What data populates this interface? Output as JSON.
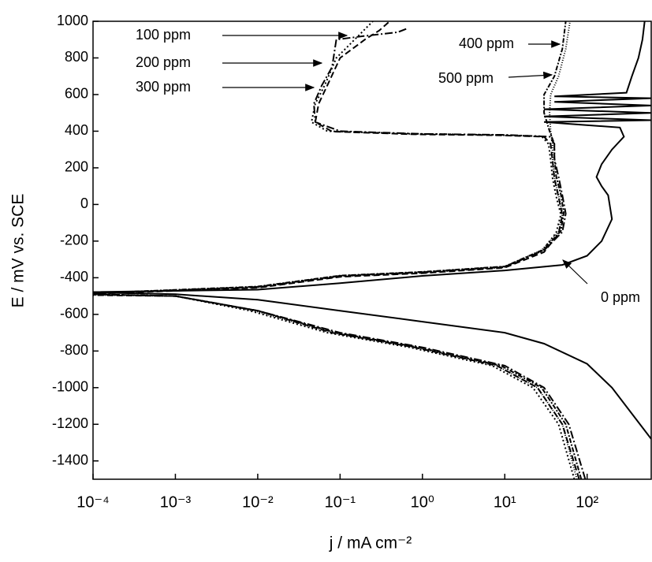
{
  "chart_data": {
    "type": "line",
    "x_label": "j / mA cm⁻²",
    "y_label": "E / mV vs. SCE",
    "xscale": "log",
    "xlim": [
      0.0001,
      600
    ],
    "ylim": [
      -1500,
      1000
    ],
    "xticks": [
      {
        "value": 0.0001,
        "label": "10⁻⁴"
      },
      {
        "value": 0.001,
        "label": "10⁻³"
      },
      {
        "value": 0.01,
        "label": "10⁻²"
      },
      {
        "value": 0.1,
        "label": "10⁻¹"
      },
      {
        "value": 1,
        "label": "10⁰"
      },
      {
        "value": 10,
        "label": "10¹"
      },
      {
        "value": 100,
        "label": "10²"
      }
    ],
    "yticks": [
      -1400,
      -1200,
      -1000,
      -800,
      -600,
      -400,
      -200,
      0,
      200,
      400,
      600,
      800,
      1000
    ],
    "series": [
      {
        "name": "0 ppm",
        "color": "#000000",
        "dash": "none",
        "x": [
          600,
          200,
          100,
          30,
          10,
          1,
          0.1,
          0.01,
          0.001,
          0.0001,
          0.0001,
          0.01,
          0.1,
          1,
          10,
          50,
          100,
          150,
          200,
          180,
          150,
          130,
          150,
          200,
          280,
          250,
          60,
          30,
          600,
          30,
          600,
          30,
          600,
          40,
          600,
          40,
          300,
          350,
          420,
          470,
          500
        ],
        "y": [
          -1280,
          -1000,
          -870,
          -760,
          -700,
          -640,
          -580,
          -520,
          -490,
          -480,
          -478,
          -465,
          -430,
          -390,
          -360,
          -330,
          -280,
          -200,
          -80,
          50,
          100,
          150,
          220,
          300,
          370,
          420,
          440,
          450,
          460,
          480,
          500,
          520,
          540,
          560,
          580,
          590,
          610,
          700,
          800,
          900,
          1000
        ]
      },
      {
        "name": "100 ppm",
        "color": "#000000",
        "dash": "10 3 2 3",
        "x": [
          95,
          60,
          30,
          10,
          1,
          0.1,
          0.01,
          0.001,
          0.0001,
          0.0001,
          0.01,
          0.1,
          1,
          10,
          30,
          50,
          55,
          50,
          45,
          40,
          40,
          35,
          10,
          1,
          0.1,
          0.05,
          0.048,
          0.06,
          0.08,
          0.09,
          0.2,
          0.5,
          0.65
        ],
        "y": [
          -1500,
          -1200,
          -1000,
          -880,
          -780,
          -700,
          -580,
          -500,
          -490,
          -485,
          -450,
          -390,
          -370,
          -340,
          -250,
          -150,
          -50,
          50,
          150,
          250,
          330,
          370,
          380,
          385,
          400,
          450,
          550,
          650,
          750,
          900,
          920,
          940,
          960
        ]
      },
      {
        "name": "200 ppm",
        "color": "#000000",
        "dash": "8 4",
        "x": [
          80,
          50,
          25,
          8,
          0.8,
          0.08,
          0.01,
          0.001,
          0.0001,
          0.0001,
          0.01,
          0.1,
          1,
          10,
          30,
          45,
          50,
          45,
          40,
          38,
          36,
          30,
          8,
          0.8,
          0.08,
          0.05,
          0.055,
          0.07,
          0.1,
          0.2,
          0.3,
          0.4
        ],
        "y": [
          -1500,
          -1200,
          -1000,
          -880,
          -780,
          -700,
          -580,
          -500,
          -495,
          -488,
          -455,
          -395,
          -375,
          -345,
          -260,
          -160,
          -60,
          40,
          140,
          240,
          330,
          370,
          378,
          383,
          398,
          450,
          550,
          650,
          800,
          900,
          950,
          1000
        ]
      },
      {
        "name": "300 ppm",
        "color": "#000000",
        "dash": "2 3",
        "x": [
          70,
          45,
          22,
          7,
          0.7,
          0.07,
          0.008,
          0.001,
          0.0001,
          0.0001,
          0.01,
          0.1,
          1,
          10,
          28,
          42,
          48,
          42,
          38,
          36,
          34,
          28,
          7,
          0.7,
          0.07,
          0.045,
          0.05,
          0.065,
          0.09,
          0.15,
          0.25
        ],
        "y": [
          -1500,
          -1200,
          -1000,
          -880,
          -780,
          -700,
          -580,
          -500,
          -492,
          -486,
          -452,
          -392,
          -372,
          -342,
          -255,
          -155,
          -55,
          45,
          145,
          245,
          330,
          372,
          380,
          386,
          400,
          450,
          550,
          650,
          800,
          900,
          1000
        ]
      },
      {
        "name": "400 ppm",
        "color": "#000000",
        "dash": "6 2 2 2",
        "x": [
          85,
          55,
          28,
          9,
          0.9,
          0.09,
          0.01,
          0.001,
          0.0001,
          0.0001,
          0.01,
          0.1,
          1,
          10,
          30,
          48,
          52,
          48,
          42,
          40,
          40,
          35,
          30,
          30,
          40,
          50,
          55
        ],
        "y": [
          -1500,
          -1200,
          -1000,
          -880,
          -780,
          -700,
          -580,
          -500,
          -490,
          -484,
          -448,
          -388,
          -368,
          -338,
          -245,
          -145,
          -45,
          55,
          155,
          255,
          330,
          400,
          500,
          600,
          700,
          850,
          1000
        ]
      },
      {
        "name": "500 ppm",
        "color": "#000000",
        "dash": "1 2",
        "x": [
          75,
          50,
          25,
          8,
          0.8,
          0.08,
          0.009,
          0.001,
          0.0001,
          0.0001,
          0.01,
          0.1,
          1,
          10,
          28,
          45,
          50,
          45,
          40,
          38,
          38,
          36,
          35,
          36,
          45,
          55,
          62
        ],
        "y": [
          -1500,
          -1200,
          -1000,
          -880,
          -780,
          -700,
          -580,
          -500,
          -494,
          -487,
          -450,
          -390,
          -370,
          -340,
          -250,
          -150,
          -50,
          50,
          150,
          250,
          330,
          400,
          500,
          600,
          700,
          850,
          1000
        ]
      }
    ]
  }
}
